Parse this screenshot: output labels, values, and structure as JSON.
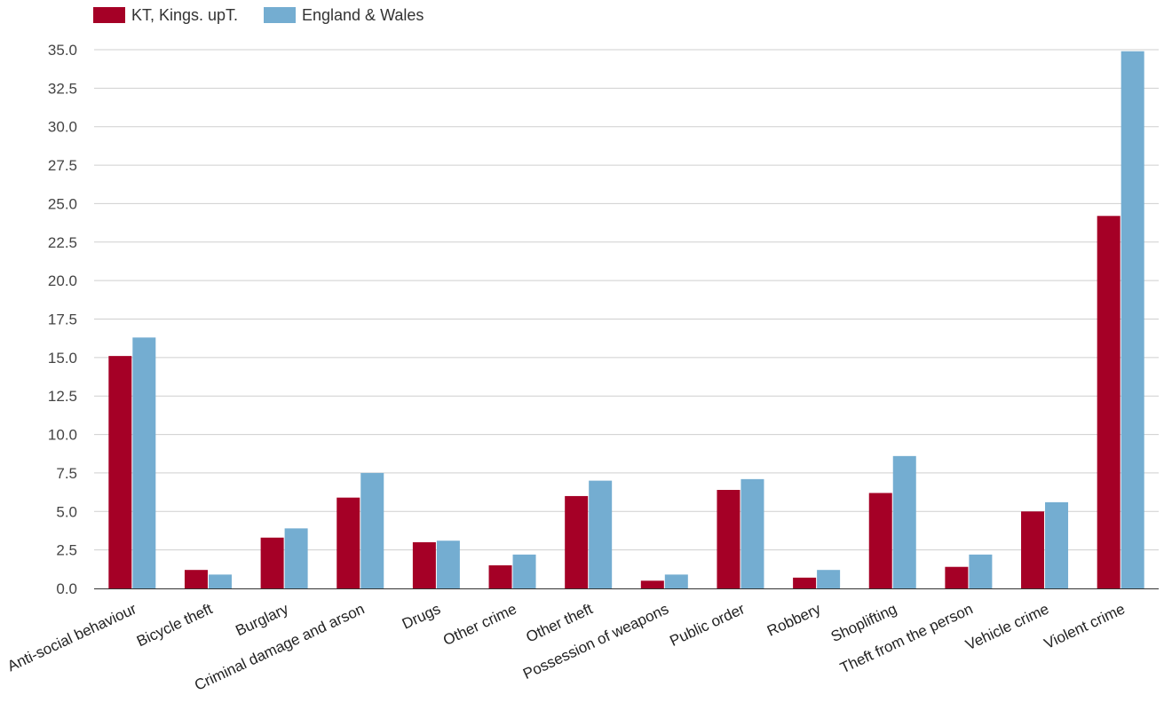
{
  "chart_data": {
    "type": "bar",
    "categories": [
      "Anti-social behaviour",
      "Bicycle theft",
      "Burglary",
      "Criminal damage and arson",
      "Drugs",
      "Other crime",
      "Other theft",
      "Possession of weapons",
      "Public order",
      "Robbery",
      "Shoplifting",
      "Theft from the person",
      "Vehicle crime",
      "Violent crime"
    ],
    "series": [
      {
        "name": "KT, Kings. upT.",
        "color": "#a50026",
        "values": [
          15.1,
          1.2,
          3.3,
          5.9,
          3.0,
          1.5,
          6.0,
          0.5,
          6.4,
          0.7,
          6.2,
          1.4,
          5.0,
          24.2
        ]
      },
      {
        "name": "England & Wales",
        "color": "#74add1",
        "values": [
          16.3,
          0.9,
          3.9,
          7.5,
          3.1,
          2.2,
          7.0,
          0.9,
          7.1,
          1.2,
          8.6,
          2.2,
          5.6,
          34.9
        ]
      }
    ],
    "yticks": [
      "0.0",
      "2.5",
      "5.0",
      "7.5",
      "10.0",
      "12.5",
      "15.0",
      "17.5",
      "20.0",
      "22.5",
      "25.0",
      "27.5",
      "30.0",
      "32.5",
      "35.0"
    ],
    "ylim": [
      0,
      35
    ],
    "grid": true,
    "legend_position": "top-left"
  }
}
